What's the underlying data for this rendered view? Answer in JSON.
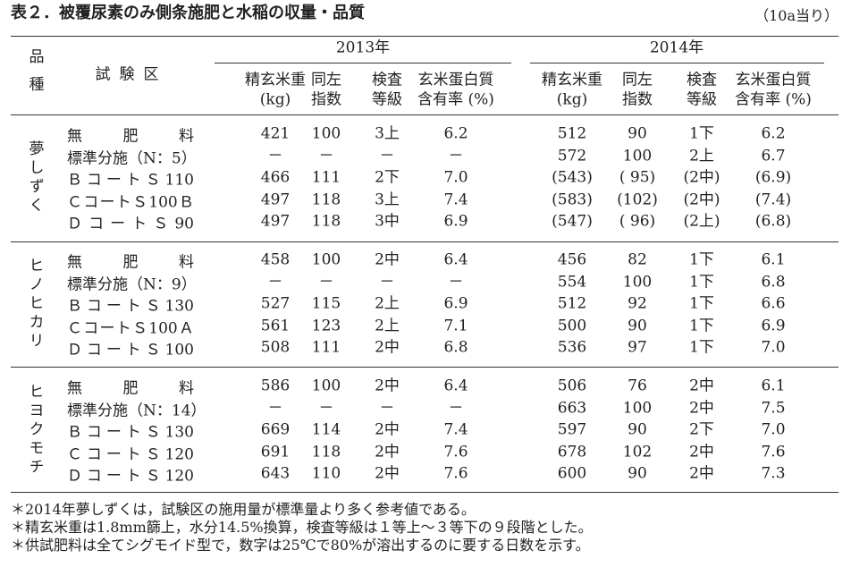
{
  "title": "表２．被覆尿素のみ側条施肥と水稲の収量・品質",
  "unit": "（10a当り）",
  "header": {
    "variety": "品種",
    "plot": "試験区",
    "years": [
      {
        "label": "2013年",
        "columns": [
          [
            "精玄米重",
            "(kg)"
          ],
          [
            "同左",
            "指数"
          ],
          [
            "検査",
            "等級"
          ],
          [
            "玄米蛋白質",
            "含有率 (%)"
          ]
        ]
      },
      {
        "label": "2014年",
        "columns": [
          [
            "精玄米重",
            "(kg)"
          ],
          [
            "同左",
            "指数"
          ],
          [
            "検査",
            "等級"
          ],
          [
            "玄米蛋白質",
            "含有率 (%)"
          ]
        ]
      }
    ]
  },
  "groups": [
    {
      "name": "夢しずく",
      "rows": [
        {
          "plot": "無肥料",
          "cells": [
            "421",
            "100",
            "3上",
            "6.2",
            "512",
            "90",
            "1下",
            "6.2"
          ]
        },
        {
          "plot": "標準分施（N：5）",
          "cells": [
            "－",
            "－",
            "－",
            "－",
            "572",
            "100",
            "2上",
            "6.7"
          ]
        },
        {
          "plot": "ＢコートＳ110",
          "cells": [
            "466",
            "111",
            "2下",
            "7.0",
            "(543)",
            "( 95)",
            "(2中)",
            "(6.9)"
          ]
        },
        {
          "plot": "ＣコートＳ100Ｂ",
          "cells": [
            "497",
            "118",
            "3上",
            "7.4",
            "(583)",
            "(102)",
            "(2中)",
            "(7.4)"
          ]
        },
        {
          "plot": "ＤコートＳ90",
          "cells": [
            "497",
            "118",
            "3中",
            "6.9",
            "(547)",
            "( 96)",
            "(2上)",
            "(6.8)"
          ]
        }
      ]
    },
    {
      "name": "ヒノヒカリ",
      "rows": [
        {
          "plot": "無肥料",
          "cells": [
            "458",
            "100",
            "2中",
            "6.4",
            "456",
            "82",
            "1下",
            "6.1"
          ]
        },
        {
          "plot": "標準分施（N：9）",
          "cells": [
            "－",
            "－",
            "－",
            "－",
            "554",
            "100",
            "1下",
            "6.8"
          ]
        },
        {
          "plot": "ＢコートＳ130",
          "cells": [
            "527",
            "115",
            "2上",
            "6.9",
            "512",
            "92",
            "1下",
            "6.6"
          ]
        },
        {
          "plot": "ＣコートＳ100Ａ",
          "cells": [
            "561",
            "123",
            "2上",
            "7.1",
            "500",
            "90",
            "1下",
            "6.9"
          ]
        },
        {
          "plot": "ＤコートＳ100",
          "cells": [
            "508",
            "111",
            "2中",
            "6.8",
            "536",
            "97",
            "1下",
            "7.0"
          ]
        }
      ]
    },
    {
      "name": "ヒヨクモチ",
      "rows": [
        {
          "plot": "無肥料",
          "cells": [
            "586",
            "100",
            "2中",
            "6.4",
            "506",
            "76",
            "2中",
            "6.1"
          ]
        },
        {
          "plot": "標準分施（N：14）",
          "cells": [
            "－",
            "－",
            "－",
            "－",
            "663",
            "100",
            "2中",
            "7.5"
          ]
        },
        {
          "plot": "ＢコートＳ130",
          "cells": [
            "669",
            "114",
            "2中",
            "7.4",
            "597",
            "90",
            "2下",
            "7.0"
          ]
        },
        {
          "plot": "ＣコートＳ120",
          "cells": [
            "691",
            "118",
            "2中",
            "7.6",
            "678",
            "102",
            "2中",
            "7.6"
          ]
        },
        {
          "plot": "ＤコートＳ120",
          "cells": [
            "643",
            "110",
            "2中",
            "7.6",
            "600",
            "90",
            "2中",
            "7.3"
          ]
        }
      ]
    }
  ],
  "notes": [
    "＊2014年夢しずくは，試験区の施用量が標準量より多く参考値である。",
    "＊精玄米重は1.8mm篩上，水分14.5%換算，検査等級は１等上～３等下の９段階とした。",
    "＊供試肥料は全てシグモイド型で，数字は25℃で80%が溶出するのに要する日数を示す。"
  ]
}
